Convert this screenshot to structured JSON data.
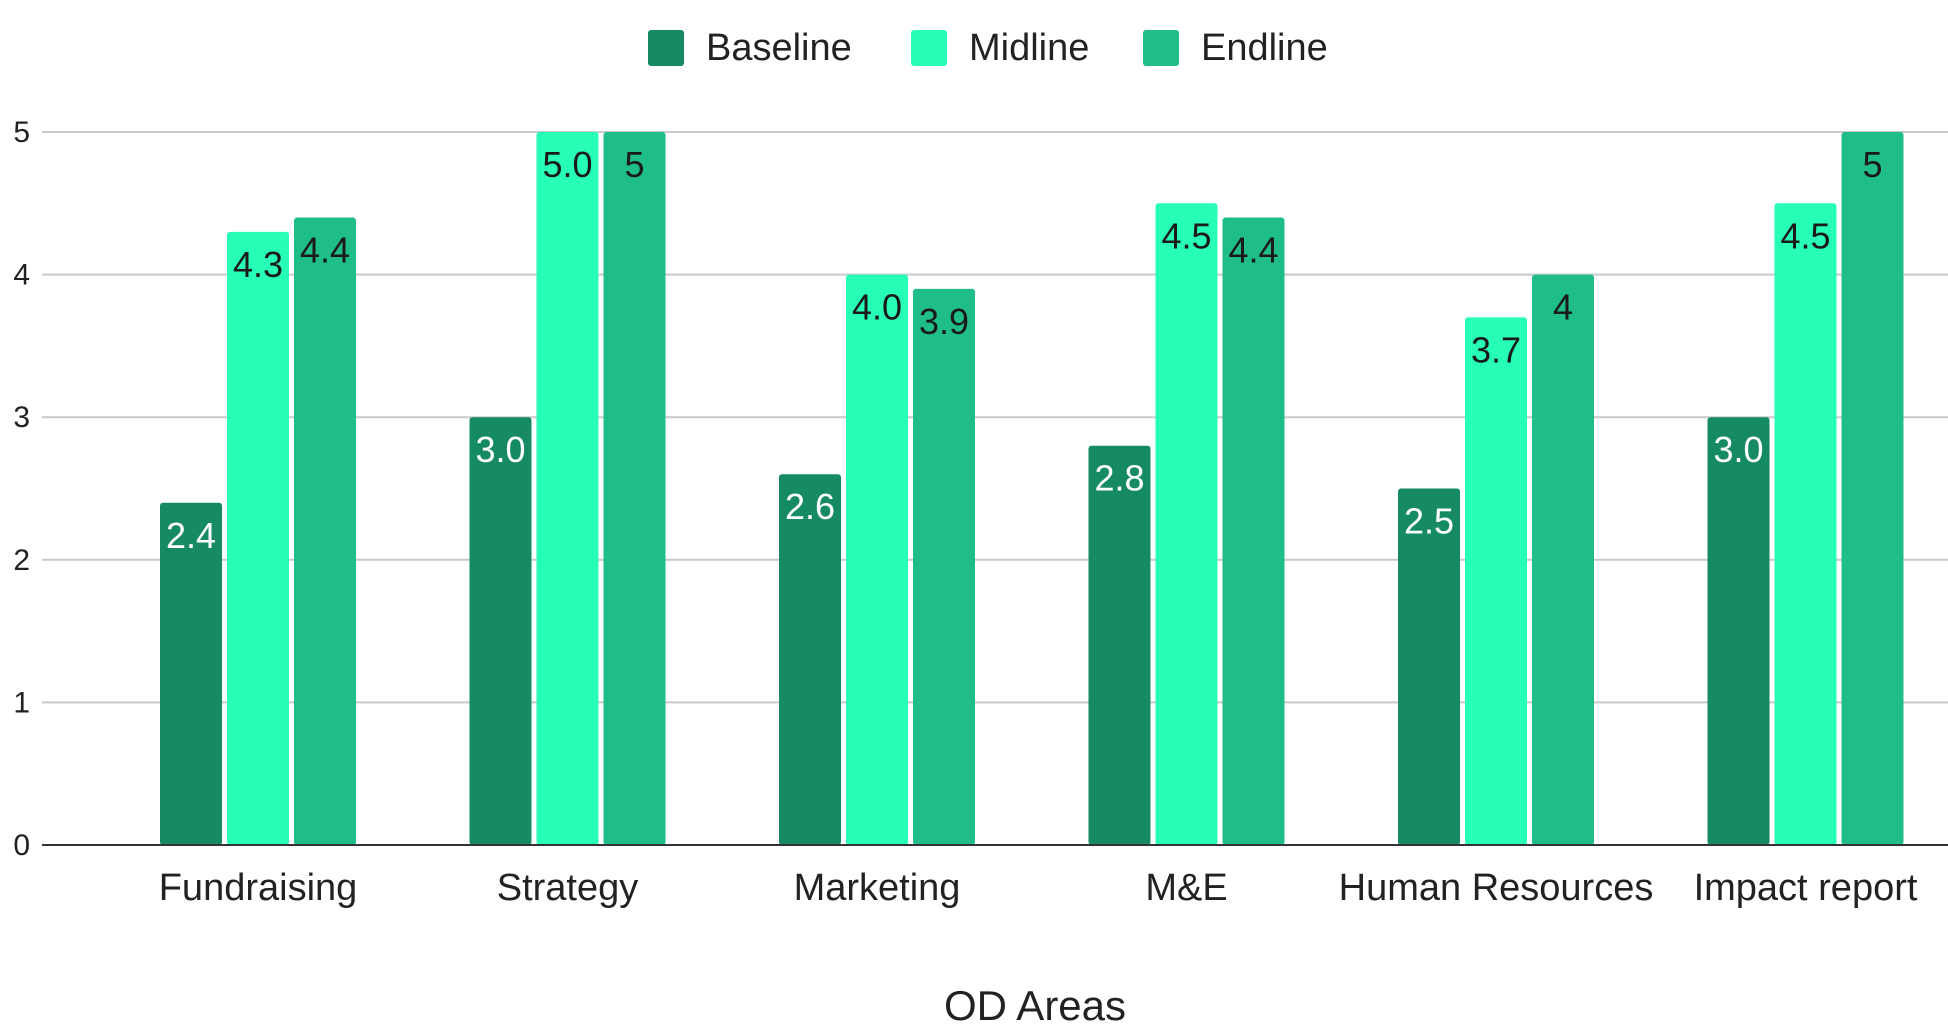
{
  "chart_data": {
    "type": "bar",
    "categories": [
      "Fundraising",
      "Strategy",
      "Marketing",
      "M&E",
      "Human Resources",
      "Impact report"
    ],
    "series": [
      {
        "name": "Baseline",
        "color": "#168a60",
        "label_color": "#ffffff",
        "values": [
          2.4,
          3.0,
          2.6,
          2.8,
          2.5,
          3.0
        ],
        "labels": [
          "2.4",
          "3.0",
          "2.6",
          "2.8",
          "2.5",
          "3.0"
        ]
      },
      {
        "name": "Midline",
        "color": "#27ffb4",
        "label_color": "#1a1a1a",
        "values": [
          4.3,
          5.0,
          4.0,
          4.5,
          3.7,
          4.5
        ],
        "labels": [
          "4.3",
          "5.0",
          "4.0",
          "4.5",
          "3.7",
          "4.5"
        ]
      },
      {
        "name": "Endline",
        "color": "#1fbe87",
        "label_color": "#1a1a1a",
        "values": [
          4.4,
          5,
          3.9,
          4.4,
          4,
          5
        ],
        "labels": [
          "4.4",
          "5",
          "3.9",
          "4.4",
          "4",
          "5"
        ]
      }
    ],
    "title": "",
    "xlabel": "OD Areas",
    "ylabel": "",
    "ylim": [
      0,
      5
    ],
    "yticks": [
      "0",
      "1",
      "2",
      "3",
      "4",
      "5"
    ],
    "grid": true,
    "legend_position": "top-center"
  }
}
